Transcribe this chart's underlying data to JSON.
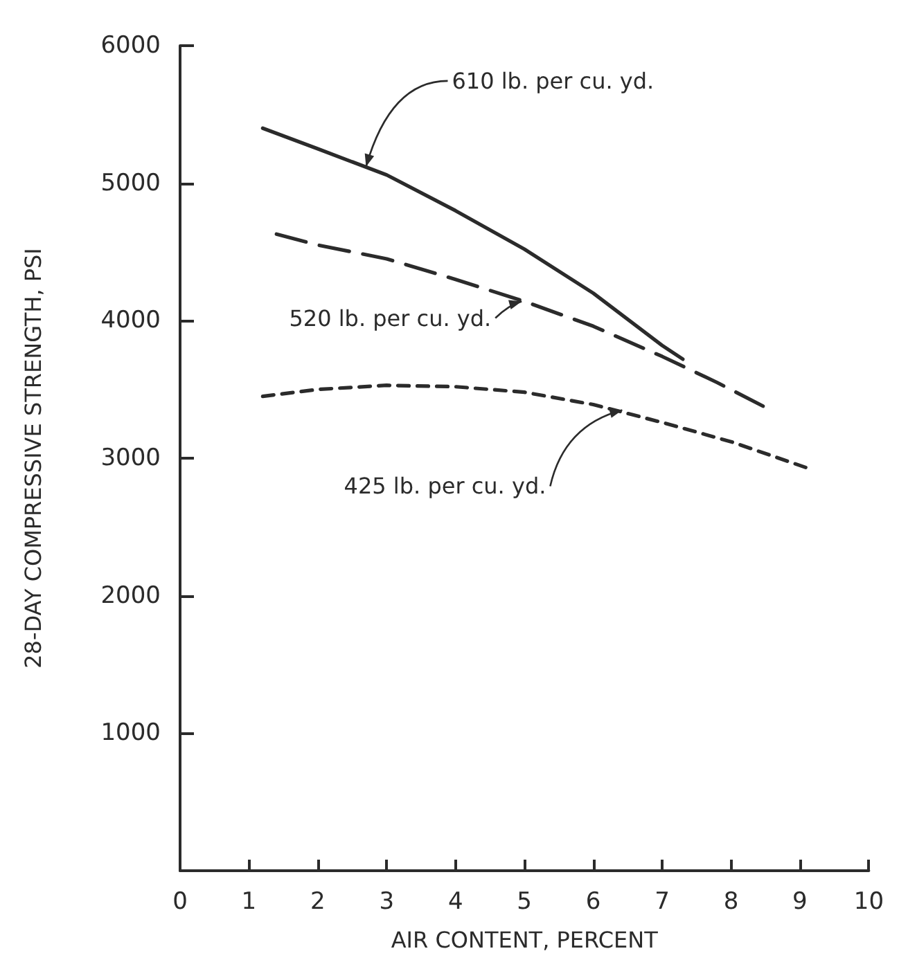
{
  "chart_data": {
    "type": "line",
    "xlabel": "AIR CONTENT, PERCENT",
    "ylabel": "28-DAY COMPRESSIVE STRENGTH, PSI",
    "xlim": [
      0,
      10
    ],
    "xticks": [
      0,
      1,
      2,
      3,
      4,
      5,
      6,
      7,
      8,
      9,
      10
    ],
    "ylim": [
      0,
      6000
    ],
    "yticks": [
      1000,
      2000,
      3000,
      4000,
      5000,
      6000
    ],
    "grid": false,
    "marker": "none",
    "series": [
      {
        "color": "#2b2b2b",
        "line_style": "solid",
        "x": [
          1.2,
          2,
          3,
          4,
          5,
          6,
          7,
          7.3
        ],
        "values": [
          5400,
          5250,
          5060,
          4800,
          4520,
          4200,
          3820,
          3720
        ]
      },
      {
        "color": "#2b2b2b",
        "line_style": "dashed",
        "x": [
          1.4,
          2,
          3,
          4,
          5,
          6,
          7,
          7.8,
          8.5
        ],
        "values": [
          4630,
          4550,
          4450,
          4300,
          4140,
          3960,
          3740,
          3550,
          3370
        ]
      },
      {
        "color": "#2b2b2b",
        "line_style": "dotted",
        "x": [
          1.2,
          2,
          3,
          4,
          5,
          6,
          7,
          8,
          9.1
        ],
        "values": [
          3450,
          3500,
          3530,
          3520,
          3480,
          3390,
          3260,
          3120,
          2930
        ]
      }
    ],
    "annotations": [
      {
        "text": "610 lb. per cu. yd.",
        "x": 2.7,
        "y": 5120
      },
      {
        "text": "520 lb. per cu. yd.",
        "x": 4.96,
        "y": 4140
      },
      {
        "text": "425 lb. per cu. yd.",
        "x": 6.42,
        "y": 3350
      }
    ]
  }
}
